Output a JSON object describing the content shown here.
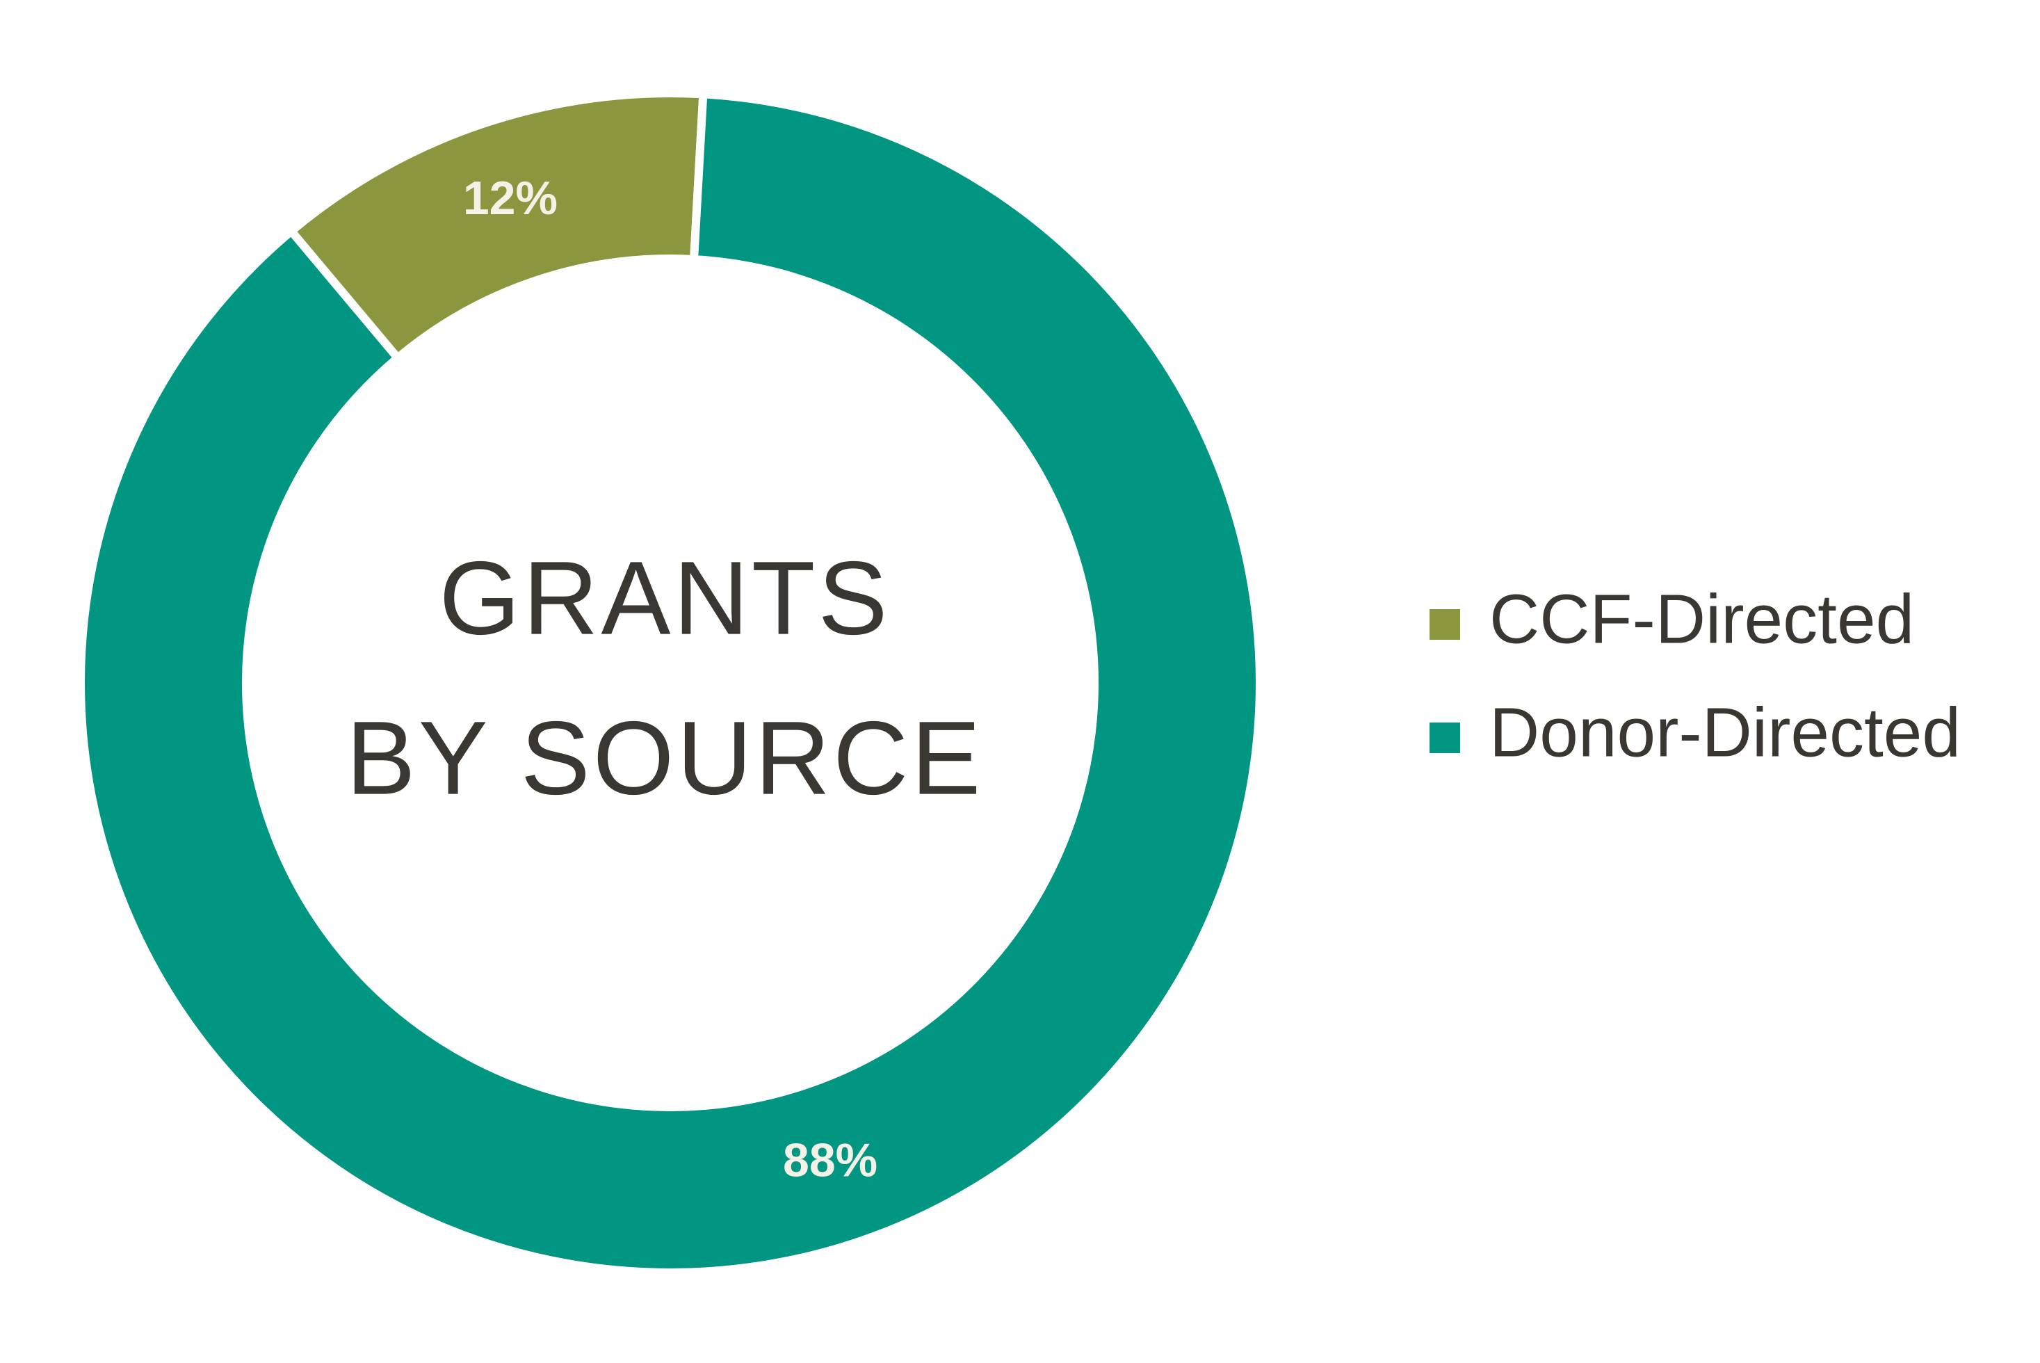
{
  "chart_data": {
    "type": "donut",
    "title": [
      "GRANTS",
      "BY SOURCE"
    ],
    "categories": [
      "CCF-Directed",
      "Donor-Directed"
    ],
    "values": [
      12,
      88
    ],
    "value_labels": [
      "12%",
      "88%"
    ],
    "colors": [
      "#8c963e",
      "#009682"
    ],
    "legend": "right"
  }
}
